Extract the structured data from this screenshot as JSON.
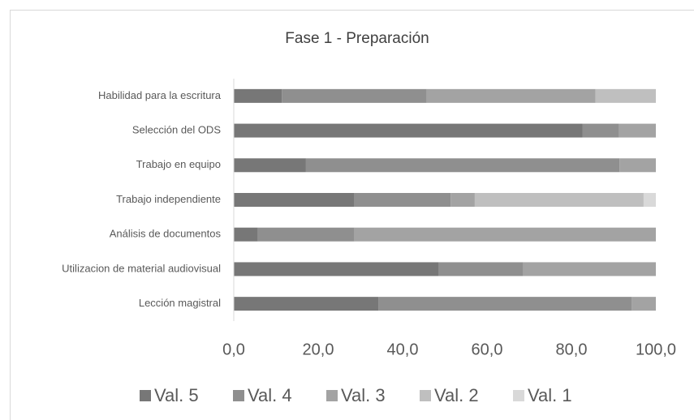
{
  "chart_data": {
    "type": "stacked-barh",
    "title": "Fase 1 - Preparación",
    "categories": [
      "Habilidad para la escritura",
      "Selección del ODS",
      "Trabajo en equipo",
      "Trabajo independiente",
      "Análisis de documentos",
      "Utilizacion de material audiovisual",
      "Lección magistral"
    ],
    "series": [
      {
        "name": "Val. 5",
        "color": "#777777",
        "values": [
          11.4,
          82.6,
          17.1,
          28.6,
          5.7,
          48.6,
          34.3
        ]
      },
      {
        "name": "Val. 4",
        "color": "#8f8f8f",
        "values": [
          34.3,
          8.7,
          74.3,
          22.8,
          22.9,
          20.0,
          60.0
        ]
      },
      {
        "name": "Val. 3",
        "color": "#a3a3a3",
        "values": [
          40.0,
          8.7,
          8.6,
          5.7,
          71.4,
          31.4,
          5.7
        ]
      },
      {
        "name": "Val. 2",
        "color": "#bfbfbf",
        "values": [
          14.3,
          0,
          0,
          40.0,
          0,
          0,
          0
        ]
      },
      {
        "name": "Val. 1",
        "color": "#d9d9d9",
        "values": [
          0,
          0,
          0,
          2.9,
          0,
          0,
          0
        ]
      }
    ],
    "xlim": [
      0,
      100
    ],
    "xticks": [
      {
        "value": 0,
        "label": "0,0"
      },
      {
        "value": 20,
        "label": "20,0"
      },
      {
        "value": 40,
        "label": "40,0"
      },
      {
        "value": 60,
        "label": "60,0"
      },
      {
        "value": 80,
        "label": "80,0"
      },
      {
        "value": 100,
        "label": "100,0"
      }
    ],
    "legend": "bottom"
  }
}
